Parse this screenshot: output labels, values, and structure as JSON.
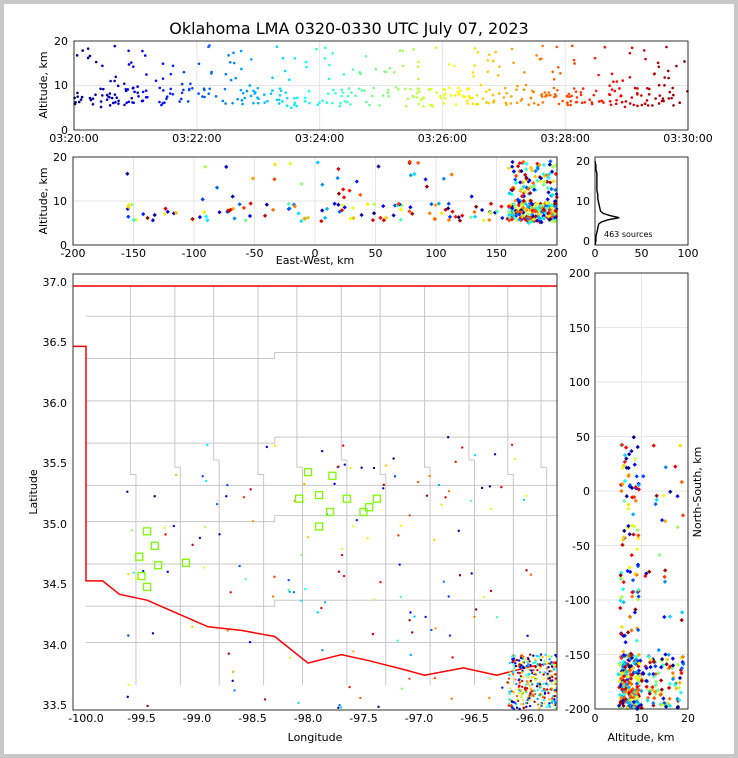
{
  "chart_data": {
    "type": "scatter",
    "title": "Oklahoma LMA 0320-0330 UTC July 07, 2023",
    "colormap": "jet (color by time)",
    "station_color": "#7cfc00",
    "state_border_color": "#ff0000",
    "county_color": "#c8c8c8",
    "panels": {
      "time_altitude": {
        "ylabel": "Altitude, km",
        "xlim": [
          "03:20:00",
          "03:30:00"
        ],
        "ylim": [
          0,
          20
        ],
        "xticks": [
          "03:20:00",
          "03:22:00",
          "03:24:00",
          "03:26:00",
          "03:28:00",
          "03:30:00"
        ],
        "yticks": [
          "0",
          "10",
          "20"
        ],
        "grid": true
      },
      "ew_altitude": {
        "xlabel": "East-West, km",
        "ylabel": "Altitude, km",
        "xlim": [
          -200,
          200
        ],
        "ylim": [
          0,
          20
        ],
        "xticks": [
          "-200",
          "-150",
          "-100",
          "-50",
          "0",
          "50",
          "100",
          "150",
          "200"
        ],
        "yticks": [
          "0",
          "10",
          "20"
        ],
        "grid": true
      },
      "histogram": {
        "xlim": [
          0,
          100
        ],
        "ylim": [
          0,
          20
        ],
        "xticks": [
          "0",
          "50",
          "100"
        ],
        "yticks": [
          "0",
          "10",
          "20"
        ],
        "annotation": "463 sources",
        "profile": [
          [
            0,
            0
          ],
          [
            1,
            1
          ],
          [
            1,
            2
          ],
          [
            2,
            3
          ],
          [
            3,
            4
          ],
          [
            4,
            5
          ],
          [
            7,
            5.5
          ],
          [
            14,
            6
          ],
          [
            26,
            6.5
          ],
          [
            16,
            7
          ],
          [
            9,
            7.5
          ],
          [
            6,
            8
          ],
          [
            5,
            9
          ],
          [
            4,
            10
          ],
          [
            3,
            11
          ],
          [
            3,
            12
          ],
          [
            2,
            13
          ],
          [
            2,
            14
          ],
          [
            2,
            15
          ],
          [
            2,
            16
          ],
          [
            2,
            17
          ],
          [
            1,
            18
          ],
          [
            1,
            19
          ],
          [
            0,
            20
          ]
        ]
      },
      "map": {
        "xlabel": "Longitude",
        "ylabel": "Latitude",
        "xlim": [
          -100.1,
          -95.75
        ],
        "ylim": [
          33.45,
          37.05
        ],
        "xticks": [
          "-100.0",
          "-99.5",
          "-99.0",
          "-98.5",
          "-98.0",
          "-97.5",
          "-97.0",
          "-96.5",
          "-96.0"
        ],
        "yticks": [
          "33.5",
          "34.0",
          "34.5",
          "35.0",
          "35.5",
          "36.0",
          "36.5",
          "37.0"
        ],
        "stations": [
          [
            -99.45,
            34.97
          ],
          [
            -99.38,
            34.85
          ],
          [
            -99.52,
            34.76
          ],
          [
            -99.35,
            34.69
          ],
          [
            -99.5,
            34.6
          ],
          [
            -99.45,
            34.51
          ],
          [
            -99.1,
            34.71
          ],
          [
            -98.08,
            35.24
          ],
          [
            -98.0,
            35.46
          ],
          [
            -97.9,
            35.27
          ],
          [
            -97.9,
            35.01
          ],
          [
            -97.78,
            35.43
          ],
          [
            -97.65,
            35.24
          ],
          [
            -97.5,
            35.13
          ],
          [
            -97.45,
            35.17
          ],
          [
            -97.38,
            35.24
          ],
          [
            -97.8,
            35.13
          ]
        ]
      },
      "alt_ns": {
        "xlabel": "Altitude, km",
        "ylabel": "North-South, km",
        "xlim": [
          0,
          20
        ],
        "ylim": [
          -200,
          200
        ],
        "xticks": [
          "0",
          "10",
          "20"
        ],
        "yticks": [
          "-200",
          "-150",
          "-100",
          "-50",
          "0",
          "50",
          "100",
          "150",
          "200"
        ],
        "grid": true
      }
    }
  }
}
